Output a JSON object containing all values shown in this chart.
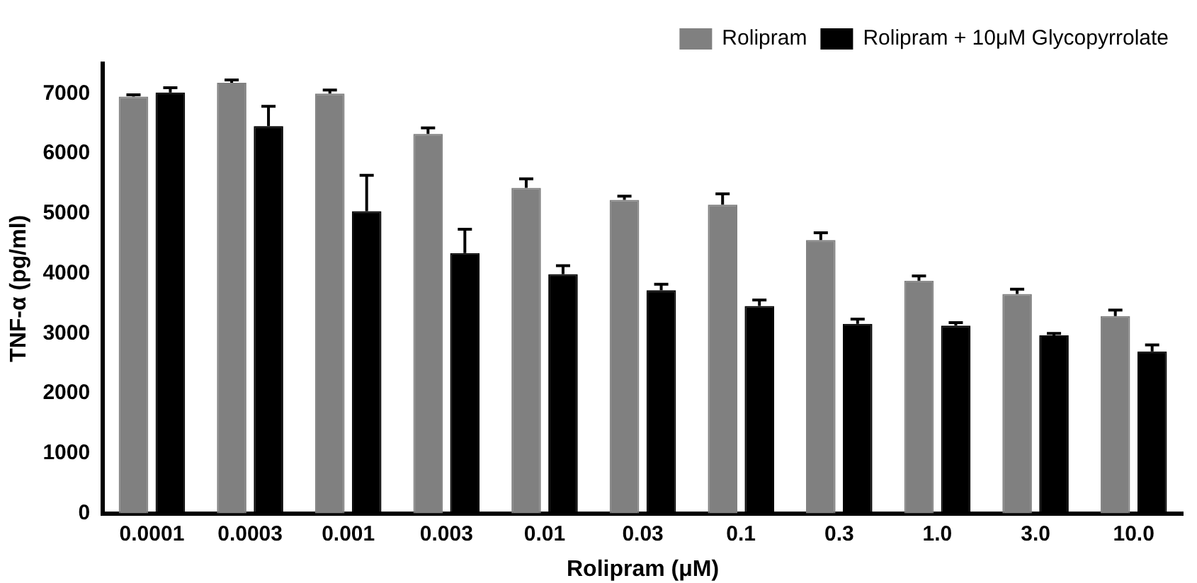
{
  "chart_data": {
    "type": "bar",
    "xlabel": "Rolipram (μM)",
    "ylabel": "TNF-α (pg/ml)",
    "categories": [
      "0.0001",
      "0.0003",
      "0.001",
      "0.003",
      "0.01",
      "0.03",
      "0.1",
      "0.3",
      "1.0",
      "3.0",
      "10.0"
    ],
    "series": [
      {
        "name": "Rolipram",
        "color": "#808080",
        "values": [
          6950,
          7180,
          7000,
          6330,
          5430,
          5230,
          5150,
          4560,
          3880,
          3660,
          3290
        ],
        "errors": [
          [
            6950,
            6980
          ],
          [
            7180,
            7230
          ],
          [
            7000,
            7060
          ],
          [
            6330,
            6430
          ],
          [
            5430,
            5580
          ],
          [
            5230,
            5290
          ],
          [
            5150,
            5330
          ],
          [
            4560,
            4680
          ],
          [
            3880,
            3960
          ],
          [
            3660,
            3740
          ],
          [
            3290,
            3390
          ]
        ]
      },
      {
        "name": "Rolipram + 10μM Glycopyrrolate",
        "color": "#000000",
        "values": [
          7020,
          6460,
          5040,
          4340,
          3990,
          3720,
          3460,
          3160,
          3130,
          2970,
          2700
        ],
        "errors": [
          [
            7020,
            7100
          ],
          [
            6460,
            6790
          ],
          [
            5040,
            5640
          ],
          [
            4340,
            4740
          ],
          [
            3990,
            4130
          ],
          [
            3720,
            3820
          ],
          [
            3460,
            3560
          ],
          [
            3160,
            3240
          ],
          [
            3130,
            3180
          ],
          [
            2970,
            3000
          ],
          [
            2700,
            2810
          ]
        ]
      }
    ],
    "ylim": [
      0,
      7500
    ],
    "yticks": [
      0,
      1000,
      2000,
      3000,
      4000,
      5000,
      6000,
      7000
    ],
    "grid": false,
    "legend": "top right"
  }
}
